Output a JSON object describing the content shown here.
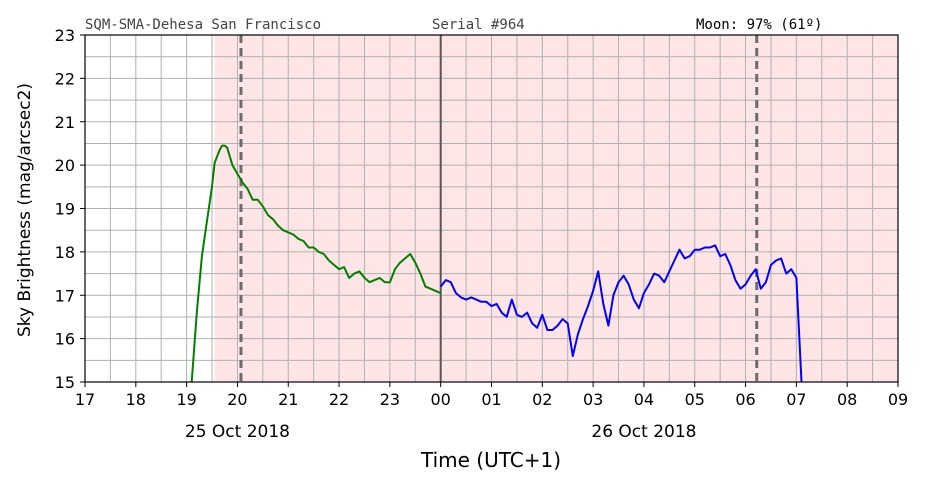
{
  "header": {
    "station": "SQM-SMA-Dehesa San Francisco",
    "serial": "Serial #964",
    "moon": "Moon: 97% (61º)"
  },
  "chart_data": {
    "type": "line",
    "title": "",
    "ylabel": "Sky Brightness (mag/arcsec2)",
    "xlabel": "Time (UTC+1)",
    "xlim": [
      17,
      33
    ],
    "ylim": [
      15,
      23
    ],
    "x_ticks": [
      {
        "v": 17,
        "label": "17"
      },
      {
        "v": 18,
        "label": "18"
      },
      {
        "v": 19,
        "label": "19"
      },
      {
        "v": 20,
        "label": "20"
      },
      {
        "v": 21,
        "label": "21"
      },
      {
        "v": 22,
        "label": "22"
      },
      {
        "v": 23,
        "label": "23"
      },
      {
        "v": 24,
        "label": "00"
      },
      {
        "v": 25,
        "label": "01"
      },
      {
        "v": 26,
        "label": "02"
      },
      {
        "v": 27,
        "label": "03"
      },
      {
        "v": 28,
        "label": "04"
      },
      {
        "v": 29,
        "label": "05"
      },
      {
        "v": 30,
        "label": "06"
      },
      {
        "v": 31,
        "label": "07"
      },
      {
        "v": 32,
        "label": "08"
      },
      {
        "v": 33,
        "label": "09"
      }
    ],
    "date_labels": [
      {
        "v": 20,
        "label": "25 Oct 2018"
      },
      {
        "v": 28,
        "label": "26 Oct 2018"
      }
    ],
    "y_ticks": [
      15,
      16,
      17,
      18,
      19,
      20,
      21,
      22,
      23
    ],
    "grid": true,
    "colors": {
      "night_shade": "#ffe5e6",
      "grid": "#b0b0b0",
      "series_day1": "#008000",
      "series_day2": "#0000ff",
      "twilight_line": "#6b6b6b",
      "midnight_line": "#555555"
    },
    "night_span": [
      19.55,
      33
    ],
    "twilight_lines": [
      20.07,
      30.22
    ],
    "midnight_line": 24,
    "series": [
      {
        "color": "#008000",
        "x": [
          19.1,
          19.2,
          19.3,
          19.4,
          19.5,
          19.55,
          19.6,
          19.65,
          19.7,
          19.75,
          19.8,
          19.85,
          19.9,
          19.95,
          20.0,
          20.05,
          20.1,
          20.2,
          20.3,
          20.4,
          20.5,
          20.6,
          20.7,
          20.8,
          20.9,
          21.0,
          21.1,
          21.2,
          21.3,
          21.4,
          21.5,
          21.6,
          21.7,
          21.8,
          21.9,
          22.0,
          22.1,
          22.2,
          22.3,
          22.4,
          22.5,
          22.6,
          22.7,
          22.8,
          22.9,
          23.0,
          23.1,
          23.2,
          23.3,
          23.4,
          23.5,
          23.6,
          23.7,
          23.8,
          23.9,
          24.0
        ],
        "y": [
          15.0,
          16.6,
          17.9,
          18.7,
          19.5,
          20.05,
          20.2,
          20.35,
          20.45,
          20.45,
          20.4,
          20.2,
          20.0,
          19.9,
          19.8,
          19.7,
          19.6,
          19.45,
          19.2,
          19.2,
          19.05,
          18.85,
          18.75,
          18.6,
          18.5,
          18.45,
          18.4,
          18.3,
          18.25,
          18.1,
          18.1,
          18.0,
          17.95,
          17.8,
          17.7,
          17.6,
          17.65,
          17.4,
          17.5,
          17.55,
          17.4,
          17.3,
          17.35,
          17.4,
          17.3,
          17.3,
          17.6,
          17.75,
          17.85,
          17.95,
          17.75,
          17.5,
          17.2,
          17.15,
          17.1,
          17.05
        ]
      },
      {
        "color": "#0000ff",
        "x": [
          24.0,
          24.1,
          24.2,
          24.3,
          24.4,
          24.5,
          24.6,
          24.7,
          24.8,
          24.9,
          25.0,
          25.1,
          25.2,
          25.3,
          25.4,
          25.5,
          25.6,
          25.7,
          25.8,
          25.9,
          26.0,
          26.1,
          26.2,
          26.3,
          26.4,
          26.5,
          26.6,
          26.7,
          26.8,
          26.9,
          27.0,
          27.1,
          27.2,
          27.3,
          27.4,
          27.5,
          27.6,
          27.7,
          27.8,
          27.9,
          28.0,
          28.1,
          28.2,
          28.3,
          28.4,
          28.5,
          28.6,
          28.7,
          28.8,
          28.9,
          29.0,
          29.1,
          29.2,
          29.3,
          29.4,
          29.5,
          29.6,
          29.7,
          29.8,
          29.9,
          30.0,
          30.1,
          30.2,
          30.3,
          30.4,
          30.5,
          30.6,
          30.7,
          30.8,
          30.9,
          31.0,
          31.1
        ],
        "y": [
          17.2,
          17.35,
          17.3,
          17.05,
          16.95,
          16.9,
          16.95,
          16.9,
          16.85,
          16.85,
          16.75,
          16.8,
          16.6,
          16.5,
          16.9,
          16.55,
          16.5,
          16.6,
          16.35,
          16.25,
          16.55,
          16.2,
          16.2,
          16.3,
          16.45,
          16.35,
          15.6,
          16.1,
          16.45,
          16.75,
          17.1,
          17.55,
          16.8,
          16.3,
          17.0,
          17.3,
          17.45,
          17.25,
          16.9,
          16.7,
          17.05,
          17.25,
          17.5,
          17.45,
          17.3,
          17.55,
          17.8,
          18.05,
          17.85,
          17.9,
          18.05,
          18.05,
          18.1,
          18.1,
          18.15,
          17.9,
          17.95,
          17.7,
          17.35,
          17.15,
          17.25,
          17.45,
          17.6,
          17.15,
          17.3,
          17.7,
          17.8,
          17.85,
          17.5,
          17.6,
          17.4,
          15.0
        ]
      }
    ]
  }
}
